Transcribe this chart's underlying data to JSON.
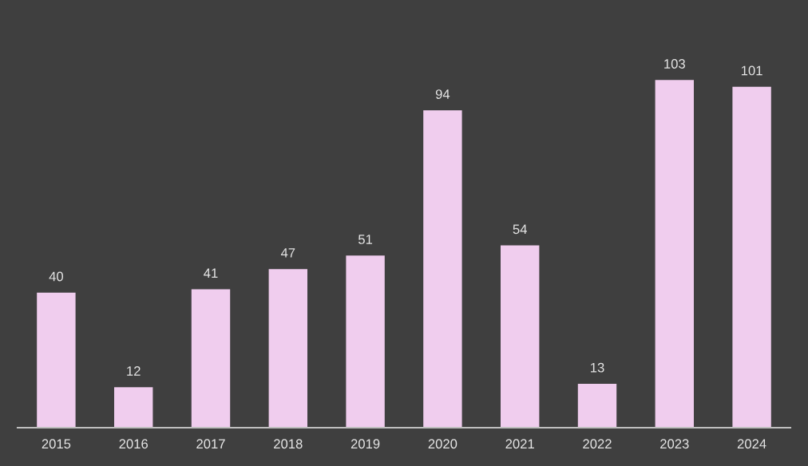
{
  "chart_data": {
    "type": "bar",
    "categories": [
      "2015",
      "2016",
      "2017",
      "2018",
      "2019",
      "2020",
      "2021",
      "2022",
      "2023",
      "2024"
    ],
    "values": [
      40,
      12,
      41,
      47,
      51,
      94,
      54,
      13,
      103,
      101
    ],
    "color": "#f0cdee",
    "tick_labels": "x",
    "data_labels": true,
    "grid": false,
    "legend": false
  }
}
